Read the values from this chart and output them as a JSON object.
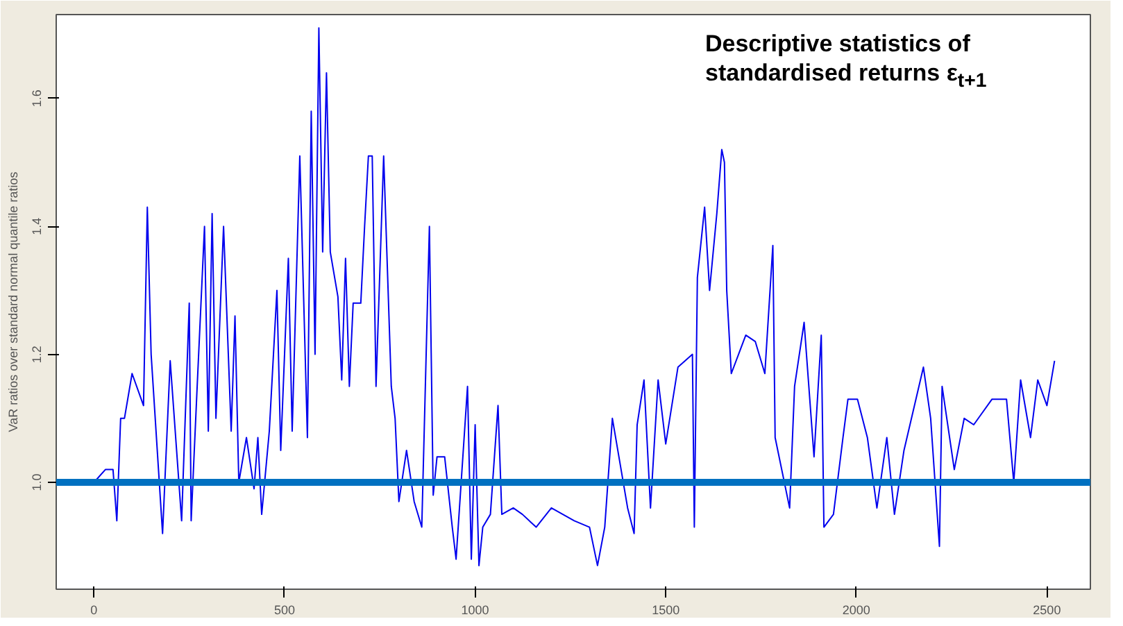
{
  "chart_data": {
    "type": "line",
    "ylabel": "VaR ratios over standard normal quantile ratios",
    "annotations": [
      "Descriptive statistics of standardised returns ε$_{t+1}$"
    ],
    "xlim": [
      -99,
      2614
    ],
    "ylim": [
      0.833,
      1.731
    ],
    "xticks": [
      0,
      500,
      1000,
      1500,
      2000,
      2500
    ],
    "yticks": [
      {
        "value": 1.0,
        "label": "1.0"
      },
      {
        "value": 1.2,
        "label": "1.2"
      },
      {
        "value": 1.4,
        "label": "1.4"
      },
      {
        "value": 1.6,
        "label": "1.6"
      }
    ],
    "grid": false,
    "marker": "none",
    "line_style": "solid",
    "ref_lines": [
      {
        "axis": "y",
        "value": 1.0,
        "label": null,
        "color": "#0070c0"
      }
    ],
    "series": [
      {
        "color": "#0000ee",
        "x": [
          0,
          30,
          50,
          60,
          70,
          80,
          100,
          130,
          140,
          150,
          180,
          200,
          230,
          250,
          255,
          270,
          290,
          300,
          310,
          320,
          340,
          360,
          370,
          380,
          400,
          420,
          430,
          440,
          460,
          480,
          490,
          510,
          520,
          540,
          560,
          570,
          580,
          590,
          600,
          610,
          620,
          640,
          650,
          660,
          670,
          680,
          700,
          710,
          720,
          730,
          740,
          760,
          780,
          790,
          800,
          820,
          840,
          860,
          880,
          890,
          900,
          920,
          940,
          950,
          980,
          990,
          1000,
          1010,
          1020,
          1040,
          1060,
          1070,
          1100,
          1124,
          1160,
          1200,
          1230,
          1260,
          1300,
          1321,
          1340,
          1360,
          1400,
          1417,
          1425,
          1443,
          1460,
          1480,
          1500,
          1532,
          1570,
          1575,
          1583,
          1602,
          1615,
          1634,
          1647,
          1654,
          1660,
          1672,
          1710,
          1735,
          1760,
          1781,
          1787,
          1825,
          1838,
          1863,
          1889,
          1908,
          1915,
          1940,
          1965,
          1978,
          2003,
          2029,
          2054,
          2080,
          2100,
          2125,
          2176,
          2195,
          2218,
          2225,
          2257,
          2283,
          2308,
          2356,
          2394,
          2413,
          2431,
          2457,
          2476,
          2500,
          2520
        ],
        "values": [
          1.0,
          1.02,
          1.02,
          0.94,
          1.1,
          1.1,
          1.17,
          1.12,
          1.43,
          1.2,
          0.92,
          1.19,
          0.94,
          1.28,
          0.94,
          1.14,
          1.4,
          1.08,
          1.42,
          1.1,
          1.4,
          1.08,
          1.26,
          1.0,
          1.07,
          0.99,
          1.07,
          0.95,
          1.08,
          1.3,
          1.05,
          1.35,
          1.08,
          1.51,
          1.07,
          1.58,
          1.2,
          1.71,
          1.36,
          1.64,
          1.36,
          1.29,
          1.16,
          1.35,
          1.15,
          1.28,
          1.28,
          1.4,
          1.51,
          1.51,
          1.15,
          1.51,
          1.15,
          1.1,
          0.97,
          1.05,
          0.97,
          0.93,
          1.4,
          0.98,
          1.04,
          1.04,
          0.93,
          0.88,
          1.15,
          0.88,
          1.09,
          0.87,
          0.93,
          0.95,
          1.12,
          0.95,
          0.96,
          0.95,
          0.93,
          0.96,
          0.95,
          0.94,
          0.93,
          0.87,
          0.93,
          1.1,
          0.96,
          0.92,
          1.09,
          1.16,
          0.96,
          1.16,
          1.06,
          1.18,
          1.2,
          0.93,
          1.32,
          1.43,
          1.3,
          1.42,
          1.52,
          1.5,
          1.3,
          1.17,
          1.23,
          1.22,
          1.17,
          1.37,
          1.07,
          0.96,
          1.15,
          1.25,
          1.04,
          1.23,
          0.93,
          0.95,
          1.07,
          1.13,
          1.13,
          1.07,
          0.96,
          1.07,
          0.95,
          1.05,
          1.18,
          1.1,
          0.9,
          1.15,
          1.02,
          1.1,
          1.09,
          1.13,
          1.13,
          1.0,
          1.16,
          1.07,
          1.16,
          1.12,
          1.19
        ]
      }
    ]
  }
}
